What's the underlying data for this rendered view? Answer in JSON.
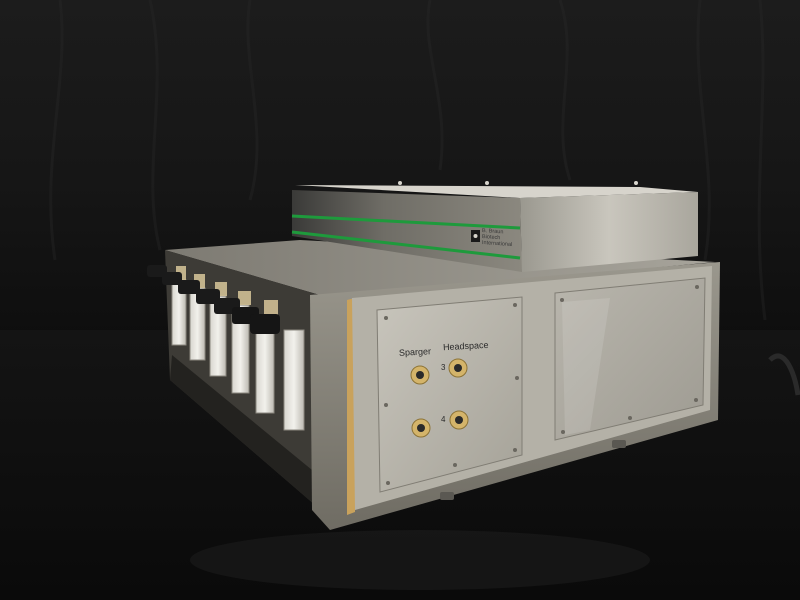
{
  "photo": {
    "subject": "gas-sampling-instrument",
    "colors": {
      "backdrop": "#1a1a1a",
      "table": "#0f0f0f",
      "steel": "#b8b4ab",
      "stripe": "#1e9a3c",
      "frame": "#8e8b80"
    }
  },
  "top_unit": {
    "brand_lines": [
      "B. Braun",
      "Biotech",
      "International"
    ]
  },
  "front_panel": {
    "port_labels": {
      "left": "Sparger",
      "right": "Headspace"
    },
    "row_numbers": [
      "3",
      "4"
    ]
  }
}
